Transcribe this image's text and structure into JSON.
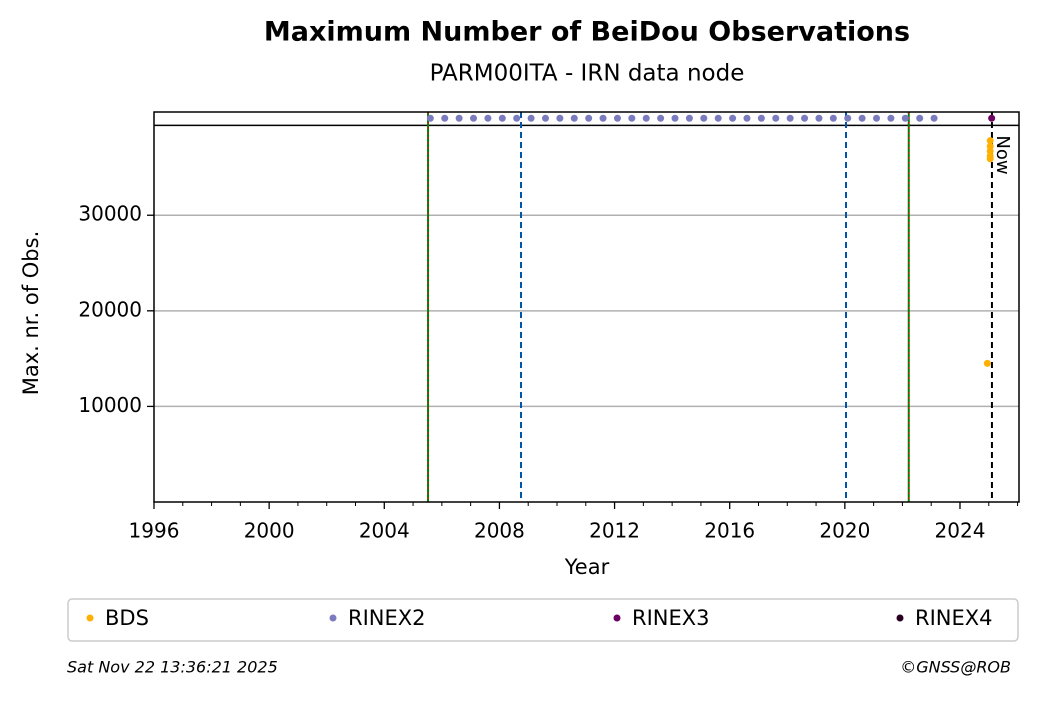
{
  "chart_data": {
    "type": "scatter",
    "title": "Maximum Number of BeiDou Observations",
    "subtitle": "PARM00ITA - IRN data node",
    "xlabel": "Year",
    "ylabel": "Max. nr. of Obs.",
    "xlim": [
      1996,
      2026.05
    ],
    "ylim": [
      0,
      40800
    ],
    "xticks": [
      1996,
      2000,
      2004,
      2008,
      2012,
      2016,
      2020,
      2024
    ],
    "xminorticks": [
      1997,
      1998,
      1999,
      2001,
      2002,
      2003,
      2005,
      2006,
      2007,
      2009,
      2010,
      2011,
      2013,
      2014,
      2015,
      2017,
      2018,
      2019,
      2021,
      2022,
      2023,
      2025,
      2026
    ],
    "yticks": [
      10000,
      20000,
      30000
    ],
    "grid": true,
    "hlines": [
      39400
    ],
    "vlines": [
      {
        "value": 2005.52,
        "color": "#008000",
        "dash_color": "#ff0000"
      },
      {
        "value": 2008.75,
        "color": "#0055aa"
      },
      {
        "value": 2020.04,
        "color": "#0055aa"
      },
      {
        "value": 2022.22,
        "color": "#008000",
        "dash_color": "#ff0000"
      },
      {
        "value": 2025.11,
        "color": "#000000",
        "label": "Now"
      }
    ],
    "series": [
      {
        "name": "BDS",
        "color": "#ffb000",
        "x": [
          2025.05,
          2025.05,
          2025.05,
          2025.05,
          2025.05,
          2024.95
        ],
        "values": [
          37800,
          37200,
          36700,
          36200,
          35900,
          14500
        ]
      },
      {
        "name": "RINEX2",
        "color": "#7b7bbf",
        "x": [
          2005.6,
          2006.1,
          2006.6,
          2007.1,
          2007.6,
          2008.1,
          2008.6,
          2009.1,
          2009.6,
          2010.1,
          2010.6,
          2011.1,
          2011.6,
          2012.1,
          2012.6,
          2013.1,
          2013.6,
          2014.1,
          2014.6,
          2015.1,
          2015.6,
          2016.1,
          2016.6,
          2017.1,
          2017.6,
          2018.1,
          2018.6,
          2019.1,
          2019.6,
          2020.1,
          2020.6,
          2021.1,
          2021.6,
          2022.1,
          2022.6,
          2023.1
        ],
        "values": [
          40150,
          40150,
          40150,
          40150,
          40150,
          40150,
          40150,
          40150,
          40150,
          40150,
          40150,
          40150,
          40150,
          40150,
          40150,
          40150,
          40150,
          40150,
          40150,
          40150,
          40150,
          40150,
          40150,
          40150,
          40150,
          40150,
          40150,
          40150,
          40150,
          40150,
          40150,
          40150,
          40150,
          40150,
          40150,
          40150
        ]
      },
      {
        "name": "RINEX3",
        "color": "#6b0060",
        "x": [
          2025.1
        ],
        "values": [
          40150
        ]
      },
      {
        "name": "RINEX4",
        "color": "#2a0020",
        "x": [],
        "values": []
      }
    ],
    "footer_left": "Sat Nov 22 13:36:21 2025",
    "footer_right": "©GNSS@ROB"
  }
}
